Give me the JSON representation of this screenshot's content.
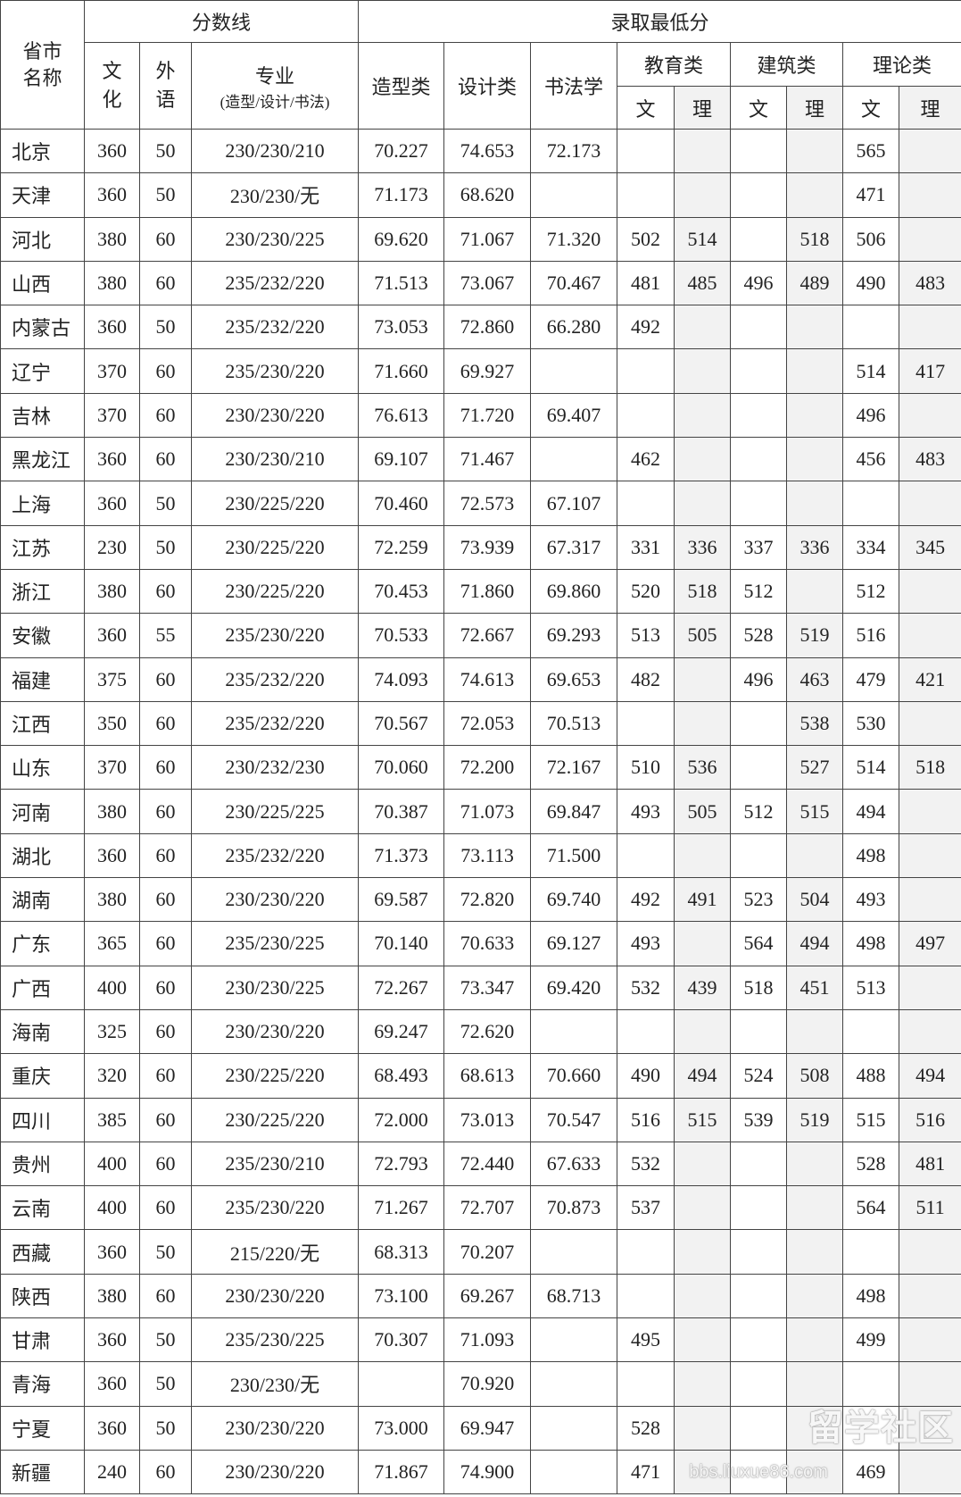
{
  "headers": {
    "province": "省市名称",
    "score_line": "分数线",
    "min_admission": "录取最低分",
    "culture": "文化",
    "foreign_lang": "外语",
    "major": "专业",
    "major_sub": "(造型/设计/书法)",
    "modeling": "造型类",
    "design": "设计类",
    "calligraphy": "书法学",
    "education": "教育类",
    "architecture": "建筑类",
    "theory": "理论类",
    "arts": "文",
    "science": "理"
  },
  "shade_color": "#f2f2f2",
  "rows": [
    [
      "北京",
      "360",
      "50",
      "230/230/210",
      "70.227",
      "74.653",
      "72.173",
      "",
      "",
      "",
      "",
      "565",
      ""
    ],
    [
      "天津",
      "360",
      "50",
      "230/230/无",
      "71.173",
      "68.620",
      "",
      "",
      "",
      "",
      "",
      "471",
      ""
    ],
    [
      "河北",
      "380",
      "60",
      "230/230/225",
      "69.620",
      "71.067",
      "71.320",
      "502",
      "514",
      "",
      "518",
      "506",
      ""
    ],
    [
      "山西",
      "380",
      "60",
      "235/232/220",
      "71.513",
      "73.067",
      "70.467",
      "481",
      "485",
      "496",
      "489",
      "490",
      "483"
    ],
    [
      "内蒙古",
      "360",
      "50",
      "235/232/220",
      "73.053",
      "72.860",
      "66.280",
      "492",
      "",
      "",
      "",
      "",
      ""
    ],
    [
      "辽宁",
      "370",
      "60",
      "235/230/220",
      "71.660",
      "69.927",
      "",
      "",
      "",
      "",
      "",
      "514",
      "417"
    ],
    [
      "吉林",
      "370",
      "60",
      "230/230/220",
      "76.613",
      "71.720",
      "69.407",
      "",
      "",
      "",
      "",
      "496",
      ""
    ],
    [
      "黑龙江",
      "360",
      "60",
      "230/230/210",
      "69.107",
      "71.467",
      "",
      "462",
      "",
      "",
      "",
      "456",
      "483"
    ],
    [
      "上海",
      "360",
      "50",
      "230/225/220",
      "70.460",
      "72.573",
      "67.107",
      "",
      "",
      "",
      "",
      "",
      ""
    ],
    [
      "江苏",
      "230",
      "50",
      "230/225/220",
      "72.259",
      "73.939",
      "67.317",
      "331",
      "336",
      "337",
      "336",
      "334",
      "345"
    ],
    [
      "浙江",
      "380",
      "60",
      "230/225/220",
      "70.453",
      "71.860",
      "69.860",
      "520",
      "518",
      "512",
      "",
      "512",
      ""
    ],
    [
      "安徽",
      "360",
      "55",
      "235/230/220",
      "70.533",
      "72.667",
      "69.293",
      "513",
      "505",
      "528",
      "519",
      "516",
      ""
    ],
    [
      "福建",
      "375",
      "60",
      "235/232/220",
      "74.093",
      "74.613",
      "69.653",
      "482",
      "",
      "496",
      "463",
      "479",
      "421"
    ],
    [
      "江西",
      "350",
      "60",
      "235/232/220",
      "70.567",
      "72.053",
      "70.513",
      "",
      "",
      "",
      "538",
      "530",
      ""
    ],
    [
      "山东",
      "370",
      "60",
      "230/232/230",
      "70.060",
      "72.200",
      "72.167",
      "510",
      "536",
      "",
      "527",
      "514",
      "518"
    ],
    [
      "河南",
      "380",
      "60",
      "230/225/225",
      "70.387",
      "71.073",
      "69.847",
      "493",
      "505",
      "512",
      "515",
      "494",
      ""
    ],
    [
      "湖北",
      "360",
      "60",
      "235/232/220",
      "71.373",
      "73.113",
      "71.500",
      "",
      "",
      "",
      "",
      "498",
      ""
    ],
    [
      "湖南",
      "380",
      "60",
      "230/230/220",
      "69.587",
      "72.820",
      "69.740",
      "492",
      "491",
      "523",
      "504",
      "493",
      ""
    ],
    [
      "广东",
      "365",
      "60",
      "235/230/225",
      "70.140",
      "70.633",
      "69.127",
      "493",
      "",
      "564",
      "494",
      "498",
      "497"
    ],
    [
      "广西",
      "400",
      "60",
      "230/230/225",
      "72.267",
      "73.347",
      "69.420",
      "532",
      "439",
      "518",
      "451",
      "513",
      ""
    ],
    [
      "海南",
      "325",
      "60",
      "230/230/220",
      "69.247",
      "72.620",
      "",
      "",
      "",
      "",
      "",
      "",
      ""
    ],
    [
      "重庆",
      "320",
      "60",
      "230/225/220",
      "68.493",
      "68.613",
      "70.660",
      "490",
      "494",
      "524",
      "508",
      "488",
      "494"
    ],
    [
      "四川",
      "385",
      "60",
      "230/225/220",
      "72.000",
      "73.013",
      "70.547",
      "516",
      "515",
      "539",
      "519",
      "515",
      "516"
    ],
    [
      "贵州",
      "400",
      "60",
      "235/230/210",
      "72.793",
      "72.440",
      "67.633",
      "532",
      "",
      "",
      "",
      "528",
      "481"
    ],
    [
      "云南",
      "400",
      "60",
      "235/230/220",
      "71.267",
      "72.707",
      "70.873",
      "537",
      "",
      "",
      "",
      "564",
      "511"
    ],
    [
      "西藏",
      "360",
      "50",
      "215/220/无",
      "68.313",
      "70.207",
      "",
      "",
      "",
      "",
      "",
      "",
      ""
    ],
    [
      "陕西",
      "380",
      "60",
      "230/230/220",
      "73.100",
      "69.267",
      "68.713",
      "",
      "",
      "",
      "",
      "498",
      ""
    ],
    [
      "甘肃",
      "360",
      "50",
      "235/230/225",
      "70.307",
      "71.093",
      "",
      "495",
      "",
      "",
      "",
      "499",
      ""
    ],
    [
      "青海",
      "360",
      "50",
      "230/230/无",
      "",
      "70.920",
      "",
      "",
      "",
      "",
      "",
      "",
      ""
    ],
    [
      "宁夏",
      "360",
      "50",
      "230/230/220",
      "73.000",
      "69.947",
      "",
      "528",
      "",
      "",
      "",
      "",
      ""
    ],
    [
      "新疆",
      "240",
      "60",
      "230/230/220",
      "71.867",
      "74.900",
      "",
      "471",
      "",
      "",
      "",
      "469",
      ""
    ]
  ],
  "watermark": {
    "title": "留学社区",
    "url": "bbs.liuxue86.com"
  }
}
